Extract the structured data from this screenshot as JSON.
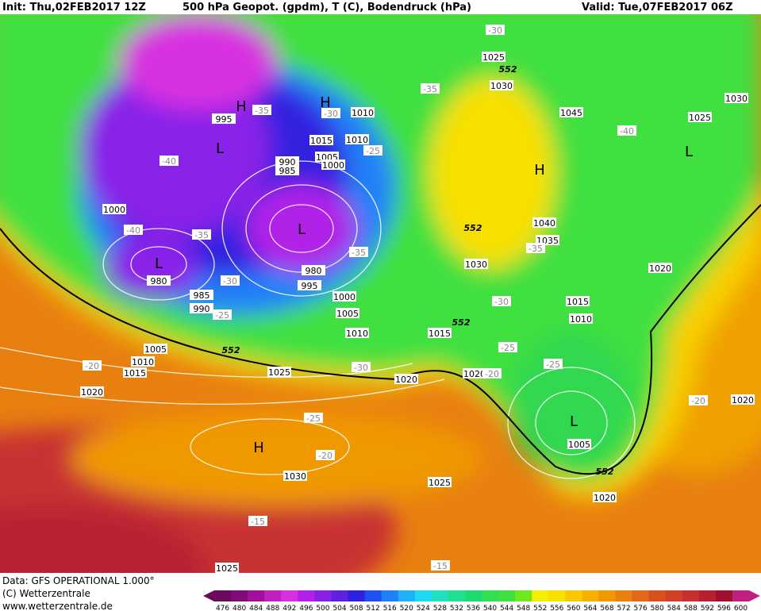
{
  "header": {
    "init": "Init: Thu,02FEB2017 12Z",
    "title": "500 hPa Geopot. (gpdm), T (C), Bodendruck (hPa)",
    "valid": "Valid: Tue,07FEB2017 06Z"
  },
  "footer": {
    "data": "Data: GFS OPERATIONAL 1.000°",
    "copyright": "(C) Wetterzentrale",
    "url": "www.wetterzentrale.de"
  },
  "legend": {
    "labels": [
      476,
      480,
      484,
      488,
      492,
      496,
      500,
      504,
      508,
      512,
      516,
      520,
      524,
      528,
      532,
      536,
      540,
      544,
      548,
      552,
      556,
      560,
      564,
      568,
      572,
      576,
      580,
      584,
      588,
      592,
      596,
      600
    ],
    "colors": [
      "#6a0a5a",
      "#800a78",
      "#a0109a",
      "#c020c0",
      "#d830e0",
      "#b020e8",
      "#8a20e8",
      "#6020e0",
      "#3020e0",
      "#2050f0",
      "#2080f8",
      "#20b0f8",
      "#20d8f0",
      "#20e0c0",
      "#20e090",
      "#20d870",
      "#30e050",
      "#40e040",
      "#70e820",
      "#f0f000",
      "#f8e000",
      "#f8c800",
      "#f8b000",
      "#f09800",
      "#e88010",
      "#e06818",
      "#d85020",
      "#d04028",
      "#c83030",
      "#b82030",
      "#a01030",
      "#c02080"
    ]
  },
  "pressure_labels": [
    "1025",
    "1030",
    "1045",
    "1030",
    "1025",
    "995",
    "1010",
    "1015",
    "1010",
    "1005",
    "1000",
    "990",
    "985",
    "1000",
    "1040",
    "1035",
    "1030",
    "1020",
    "980",
    "985",
    "990",
    "995",
    "980",
    "1000",
    "1005",
    "1010",
    "1015",
    "1015",
    "1010",
    "1005",
    "1010",
    "1015",
    "1025",
    "1020",
    "1020",
    "1020",
    "1020",
    "1030",
    "1025",
    "1020",
    "1005",
    "1025"
  ],
  "temperature_labels": [
    "-30",
    "-35",
    "-35",
    "-30",
    "-25",
    "-40",
    "-40",
    "-35",
    "-35",
    "-30",
    "-25",
    "-20",
    "-30",
    "-25",
    "-25",
    "-30",
    "-40",
    "-35",
    "-20",
    "-25",
    "-20",
    "-15",
    "-15",
    "-20"
  ],
  "centers": [
    "H",
    "H",
    "L",
    "L",
    "L",
    "H",
    "L",
    "H",
    "L"
  ],
  "contour_552_labels": [
    "552",
    "552",
    "552",
    "552",
    "552"
  ]
}
